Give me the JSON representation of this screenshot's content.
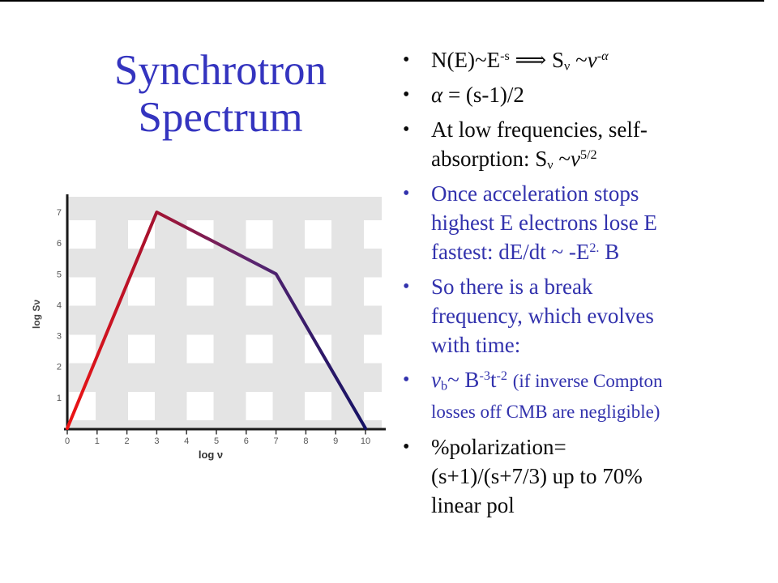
{
  "slide": {
    "top_border_color": "#000000",
    "title_lines": [
      "Synchrotron",
      "Spectrum"
    ],
    "title_color": "#3434bf",
    "bullet_blue": "#3232ad",
    "bullet_black": "#0a0a0a"
  },
  "bullets": [
    {
      "color": "#0a0a0a",
      "segments": [
        {
          "t": "N(E)~E"
        },
        {
          "t": "-s",
          "s": "sup"
        },
        {
          "t": " ⟹ S"
        },
        {
          "t": "ν",
          "s": "sub"
        },
        {
          "t": " ~"
        },
        {
          "t": "ν",
          "s": "i"
        },
        {
          "t": "-α",
          "s": "sup i"
        }
      ]
    },
    {
      "color": "#0a0a0a",
      "segments": [
        {
          "t": "α",
          "s": "i"
        },
        {
          "t": " = (s-1)/2"
        }
      ]
    },
    {
      "color": "#0a0a0a",
      "segments": [
        {
          "t": "At low frequencies, self-"
        },
        {
          "br": true
        },
        {
          "t": "absorption: S"
        },
        {
          "t": "ν",
          "s": "sub"
        },
        {
          "t": " ~"
        },
        {
          "t": "ν",
          "s": "i"
        },
        {
          "t": "5/2",
          "s": "sup"
        }
      ]
    },
    {
      "color": "#3232ad",
      "segments": [
        {
          "t": "Once acceleration stops"
        },
        {
          "br": true
        },
        {
          "t": "highest E electrons lose E"
        },
        {
          "br": true
        },
        {
          "t": "fastest: dE/dt ~ -E"
        },
        {
          "t": "2.",
          "s": "sup"
        },
        {
          "t": " B"
        }
      ]
    },
    {
      "color": "#3232ad",
      "segments": [
        {
          "t": "So there is a break"
        },
        {
          "br": true
        },
        {
          "t": "frequency, which evolves"
        },
        {
          "br": true
        },
        {
          "t": "with time:"
        }
      ]
    },
    {
      "color": "#3232ad",
      "segments": [
        {
          "t": "ν",
          "s": "i"
        },
        {
          "t": "b",
          "s": "sub"
        },
        {
          "t": "~ B"
        },
        {
          "t": "-3",
          "s": "sup"
        },
        {
          "t": "t"
        },
        {
          "t": "-2",
          "s": "sup"
        },
        {
          "t": " "
        },
        {
          "t": "(if inverse Compton",
          "s": "small"
        },
        {
          "br": true
        },
        {
          "t": "losses off CMB are negligible)",
          "s": "small"
        }
      ]
    },
    {
      "color": "#0a0a0a",
      "segments": [
        {
          "t": "%polarization="
        },
        {
          "br": true
        },
        {
          "t": "(s+1)/(s+7/3) up to 70%"
        },
        {
          "br": true
        },
        {
          "t": "linear pol"
        }
      ]
    }
  ],
  "chart_data": {
    "type": "line",
    "title": "",
    "xlabel": "log ν",
    "ylabel": "log Sν",
    "x": [
      0,
      3,
      7,
      10
    ],
    "y": [
      0,
      7,
      5,
      0
    ],
    "x_ticks": [
      "0",
      "1",
      "2",
      "3",
      "4",
      "5",
      "6",
      "7",
      "8",
      "9",
      "10"
    ],
    "y_ticks": [
      "1",
      "2",
      "3",
      "4",
      "5",
      "6",
      "7"
    ],
    "xlim": [
      0,
      10.6
    ],
    "ylim": [
      0,
      7.7
    ],
    "grid": "gray-white checkered plaid background",
    "background_gray": "#e4e4e4",
    "axis_color": "#1a1a1a",
    "tick_label_color": "#555555",
    "line_gradient": [
      {
        "offset": 0.0,
        "color": "#ee1414"
      },
      {
        "offset": 0.28,
        "color": "#a8122e"
      },
      {
        "offset": 0.62,
        "color": "#5a2570"
      },
      {
        "offset": 1.0,
        "color": "#141264"
      }
    ]
  }
}
